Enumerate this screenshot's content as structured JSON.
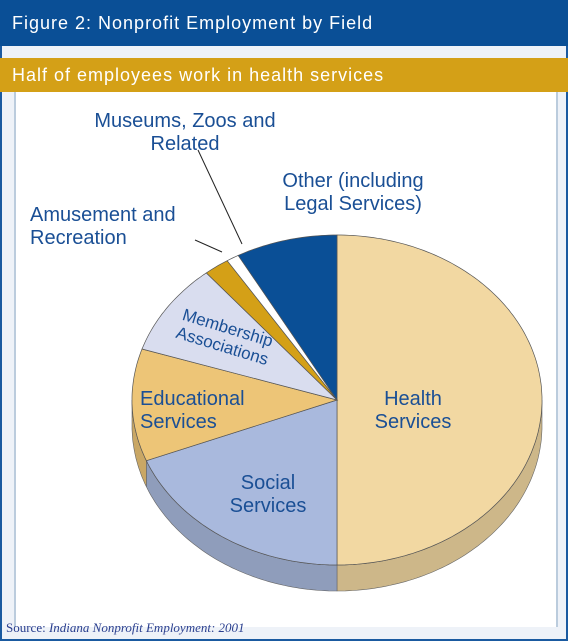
{
  "chart_data": {
    "type": "pie3d",
    "title": "Figure 2: Nonprofit Employment by Field",
    "subtitle": "Half of employees work in health services",
    "categories": [
      "Health Services",
      "Social Services",
      "Educational Services",
      "Membership Associations",
      "Amusement and Recreation",
      "Museums, Zoos and Related",
      "Other (including Legal Services)"
    ],
    "values": [
      50,
      19,
      11,
      9,
      2,
      1,
      8
    ],
    "colors": [
      "#f2d8a2",
      "#a9b9dd",
      "#edc577",
      "#d9ddef",
      "#d4a017",
      "#ffffff",
      "#0a4f96"
    ],
    "source_prefix": "Source:",
    "source_title": "Indiana Nonprofit Employment: 2001"
  }
}
